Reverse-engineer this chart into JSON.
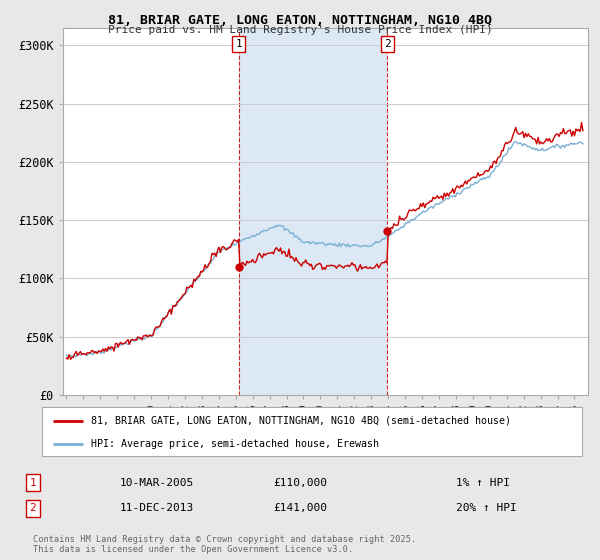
{
  "title_line1": "81, BRIAR GATE, LONG EATON, NOTTINGHAM, NG10 4BQ",
  "title_line2": "Price paid vs. HM Land Registry's House Price Index (HPI)",
  "legend_label1": "81, BRIAR GATE, LONG EATON, NOTTINGHAM, NG10 4BQ (semi-detached house)",
  "legend_label2": "HPI: Average price, semi-detached house, Erewash",
  "annotation1_label": "1",
  "annotation1_date": "10-MAR-2005",
  "annotation1_price": "£110,000",
  "annotation1_hpi": "1% ↑ HPI",
  "annotation2_label": "2",
  "annotation2_date": "11-DEC-2013",
  "annotation2_price": "£141,000",
  "annotation2_hpi": "20% ↑ HPI",
  "footer": "Contains HM Land Registry data © Crown copyright and database right 2025.\nThis data is licensed under the Open Government Licence v3.0.",
  "line_color_red": "#cc0000",
  "line_color_blue": "#7ab0d4",
  "shade_color": "#dce9f5",
  "background_color": "#e8e8e8",
  "plot_bg_color": "#ffffff",
  "ylabel_ticks": [
    "£0",
    "£50K",
    "£100K",
    "£150K",
    "£200K",
    "£250K",
    "£300K"
  ],
  "ytick_values": [
    0,
    50000,
    100000,
    150000,
    200000,
    250000,
    300000
  ],
  "ylim": [
    0,
    315000
  ],
  "xlim_start": 1994.8,
  "xlim_end": 2025.8,
  "purchase1_x": 2005.19,
  "purchase1_y": 110000,
  "purchase2_x": 2013.94,
  "purchase2_y": 141000,
  "vline1_x": 2005.19,
  "vline2_x": 2013.94
}
